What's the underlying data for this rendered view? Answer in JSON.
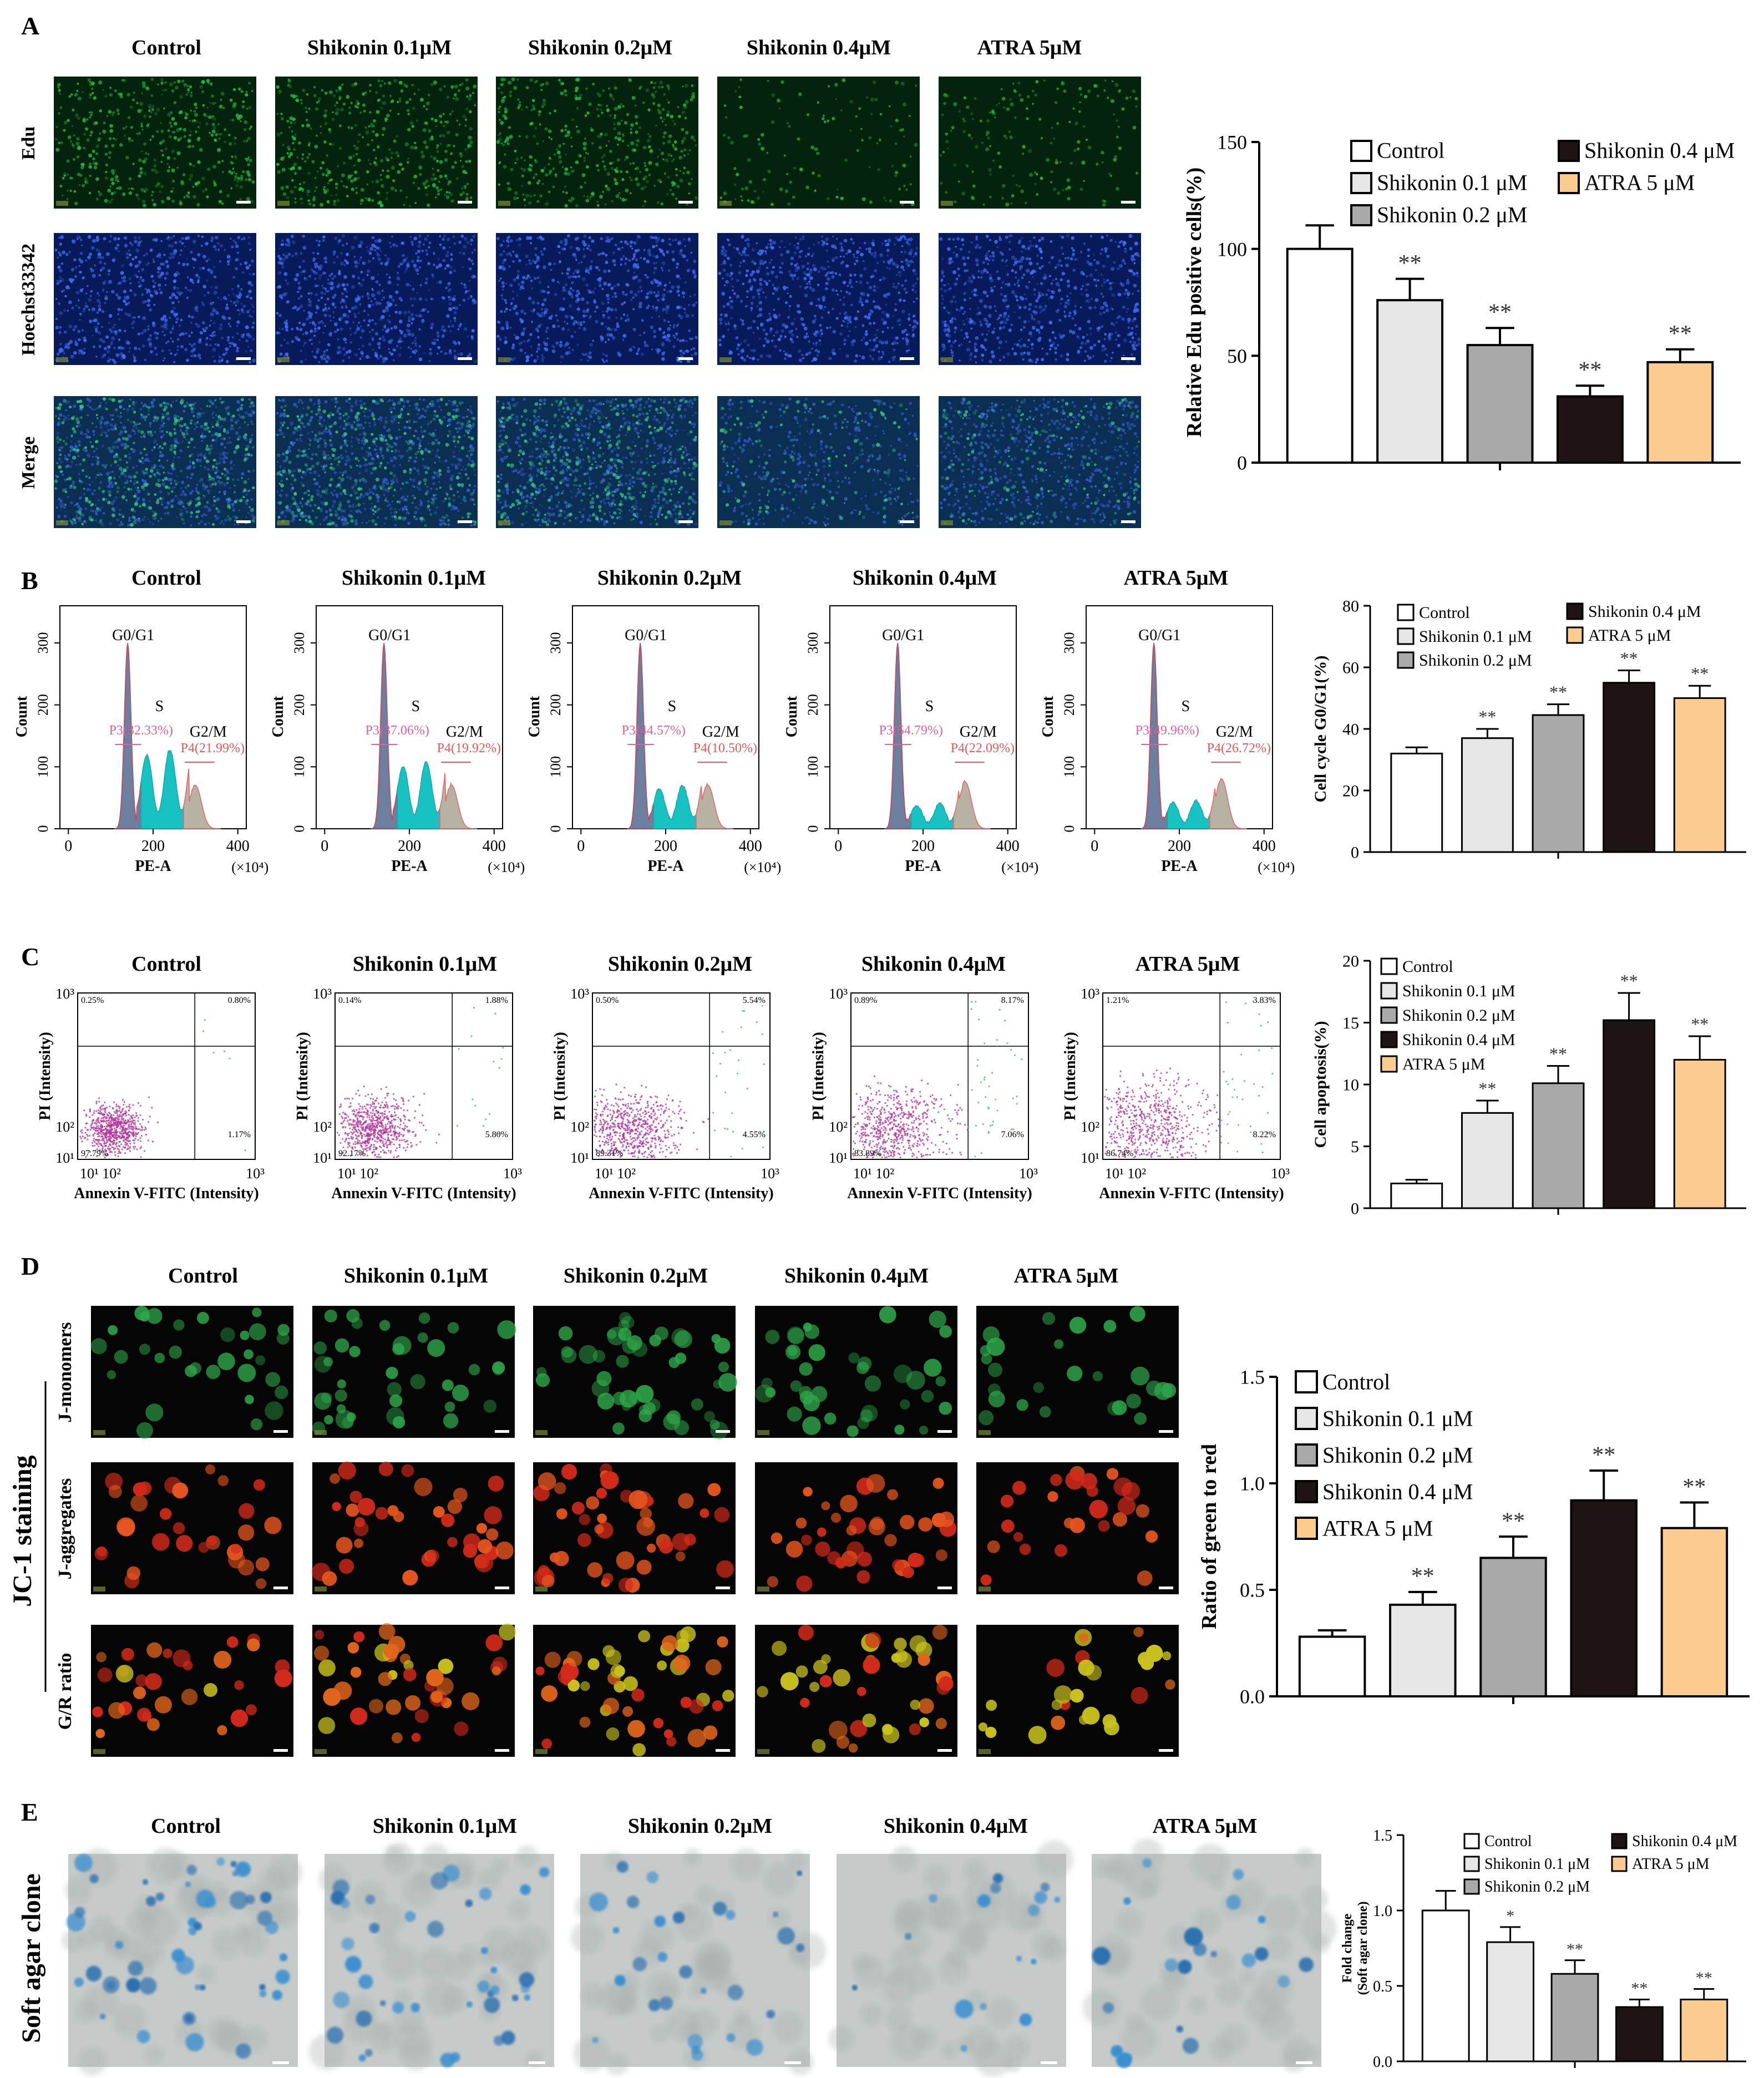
{
  "figure": {
    "groups": [
      "Control",
      "Shikonin 0.1μM",
      "Shikonin 0.2μM",
      "Shikonin 0.4μM",
      "ATRA 5μM"
    ],
    "groups_spaced": [
      "Control",
      "Shikonin 0.1 μM",
      "Shikonin 0.2 μM",
      "Shikonin 0.4 μM",
      "ATRA 5 μM"
    ],
    "colors": [
      "#ffffff",
      "#e6e6e6",
      "#a9a9a9",
      "#1f1414",
      "#fbcb8f"
    ]
  },
  "panels": {
    "A": {
      "letter": "A",
      "row_labels": [
        "Edu",
        "Hoechst33342",
        "Merge"
      ],
      "row_tints": [
        "#04230c",
        "#071a5a",
        "#0a2f52"
      ],
      "cell_colors": [
        "#27c24a",
        "#4a73ff",
        "#39d080"
      ],
      "cell_density": [
        [
          0.95,
          0.9,
          0.9,
          0.25,
          0.35
        ],
        [
          1,
          1,
          1,
          1,
          1
        ],
        [
          0.9,
          0.85,
          0.85,
          0.3,
          0.35
        ]
      ]
    },
    "B": {
      "letter": "B",
      "y_label": "Count",
      "x_label": "PE-A",
      "x_unit": "(×10⁴)",
      "x_ticks": [
        "0",
        "200",
        "400"
      ],
      "y_ticks": [
        "0",
        "100",
        "200",
        "300"
      ],
      "g0_label": "G0/G1",
      "s_label": "S",
      "g2_label": "G2/M",
      "p3": [
        "P3(32.33%)",
        "P3(37.06%)",
        "P3(44.57%)",
        "P3(54.79%)",
        "P3(49.96%)"
      ],
      "p4": [
        "P4(21.99%)",
        "P4(19.92%)",
        "P4(10.50%)",
        "P4(22.09%)",
        "P4(26.72%)"
      ],
      "g0_heights": [
        300,
        300,
        300,
        300,
        300
      ],
      "s_heights": [
        130,
        110,
        70,
        40,
        45
      ],
      "g2_heights": [
        70,
        70,
        70,
        75,
        80
      ]
    },
    "C": {
      "letter": "C",
      "y_label": "PI (Intensity)",
      "x_label": "Annexin V-FITC (Intensity)",
      "quadrants": [
        [
          "0.25%",
          "0.80%",
          "97.79%",
          "1.17%"
        ],
        [
          "0.14%",
          "1.88%",
          "92.17%",
          "5.80%"
        ],
        [
          "0.50%",
          "5.54%",
          "89.31%",
          "4.55%"
        ],
        [
          "0.89%",
          "8.17%",
          "83.89%",
          "7.06%"
        ],
        [
          "1.21%",
          "3.83%",
          "86.74%",
          "8.22%"
        ]
      ]
    },
    "D": {
      "letter": "D",
      "side_label": "JC-1 staining",
      "row_labels": [
        "J-monomers",
        "J-aggregates",
        "G/R ratio"
      ]
    },
    "E": {
      "letter": "E",
      "side_label": "Soft agar clone",
      "colony_density": [
        1,
        0.85,
        0.6,
        0.35,
        0.45
      ]
    }
  },
  "chart_data": [
    {
      "id": "A",
      "type": "bar",
      "categories": [
        "Control",
        "Shikonin 0.1μM",
        "Shikonin 0.2μM",
        "Shikonin 0.4μM",
        "ATRA 5μM"
      ],
      "values": [
        100,
        76,
        55,
        31,
        47
      ],
      "errors": [
        11,
        10,
        8,
        5,
        6
      ],
      "significance": [
        "",
        "**",
        "**",
        "**",
        "**"
      ],
      "ylabel": "Relative Edu positive cells(%)",
      "ylim": [
        0,
        150
      ],
      "yticks": [
        0,
        50,
        100,
        150
      ],
      "legend": "top"
    },
    {
      "id": "B",
      "type": "bar",
      "categories": [
        "Control",
        "Shikonin 0.1μM",
        "Shikonin 0.2μM",
        "Shikonin 0.4μM",
        "ATRA 5μM"
      ],
      "values": [
        32,
        37,
        44.5,
        55,
        50
      ],
      "errors": [
        2,
        3,
        3.5,
        4,
        4
      ],
      "significance": [
        "",
        "**",
        "**",
        "**",
        "**"
      ],
      "ylabel": "Cell cycle G0/G1(%)",
      "ylim": [
        0,
        80
      ],
      "yticks": [
        0,
        20,
        40,
        60,
        80
      ],
      "legend": "top"
    },
    {
      "id": "C",
      "type": "bar",
      "categories": [
        "Control",
        "Shikonin 0.1μM",
        "Shikonin 0.2μM",
        "Shikonin 0.4μM",
        "ATRA 5μM"
      ],
      "values": [
        2,
        7.7,
        10.1,
        15.2,
        12
      ],
      "errors": [
        0.3,
        1,
        1.4,
        2.2,
        1.9
      ],
      "significance": [
        "",
        "**",
        "**",
        "**",
        "**"
      ],
      "ylabel": "Cell apoptosis(%)",
      "ylim": [
        0,
        20
      ],
      "yticks": [
        0,
        5,
        10,
        15,
        20
      ],
      "legend": "top-left"
    },
    {
      "id": "D",
      "type": "bar",
      "categories": [
        "Control",
        "Shikonin 0.1μM",
        "Shikonin 0.2μM",
        "Shikonin 0.4μM",
        "ATRA 5μM"
      ],
      "values": [
        0.28,
        0.43,
        0.65,
        0.92,
        0.79
      ],
      "errors": [
        0.03,
        0.06,
        0.1,
        0.14,
        0.12
      ],
      "significance": [
        "",
        "**",
        "**",
        "**",
        "**"
      ],
      "ylabel": "Ratio of green to red",
      "ylim": [
        0,
        1.5
      ],
      "yticks": [
        0.0,
        0.5,
        1.0,
        1.5
      ],
      "ytick_labels": [
        "0.0",
        "0.5",
        "1.0",
        "1.5"
      ],
      "legend": "top-left"
    },
    {
      "id": "E",
      "type": "bar",
      "categories": [
        "Control",
        "Shikonin 0.1μM",
        "Shikonin 0.2μM",
        "Shikonin 0.4μM",
        "ATRA 5μM"
      ],
      "values": [
        1.0,
        0.79,
        0.58,
        0.36,
        0.41
      ],
      "errors": [
        0.13,
        0.1,
        0.09,
        0.05,
        0.07
      ],
      "significance": [
        "",
        "*",
        "**",
        "**",
        "**"
      ],
      "ylabel": "Fold change (Soft agar clone)",
      "ylabel_lines": [
        "Fold change",
        "(Soft agar clone)"
      ],
      "ylim": [
        0,
        1.5
      ],
      "yticks": [
        0.0,
        0.5,
        1.0,
        1.5
      ],
      "ytick_labels": [
        "0.0",
        "0.5",
        "1.0",
        "1.5"
      ],
      "legend": "top"
    }
  ]
}
